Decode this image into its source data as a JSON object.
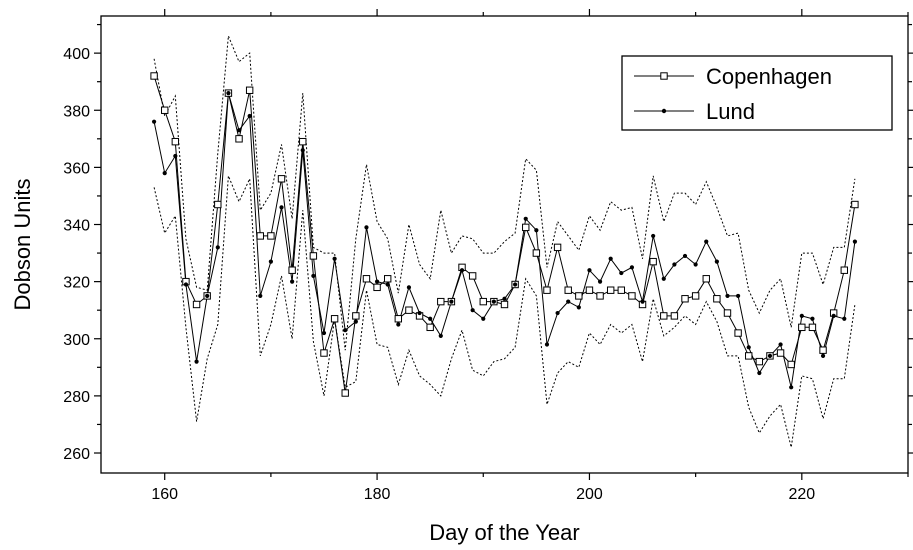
{
  "chart_data": {
    "type": "line",
    "title": "",
    "xlabel": "Day of the Year",
    "ylabel": "Dobson Units",
    "xlim": [
      154,
      230
    ],
    "ylim": [
      253,
      413
    ],
    "xticks": [
      160,
      180,
      200,
      220
    ],
    "yticks": [
      260,
      280,
      300,
      320,
      340,
      360,
      380,
      400
    ],
    "grid": false,
    "legend_position": "top-right",
    "x": [
      159,
      160,
      161,
      162,
      163,
      164,
      165,
      166,
      167,
      168,
      169,
      170,
      171,
      172,
      173,
      174,
      175,
      176,
      177,
      178,
      179,
      180,
      181,
      182,
      183,
      184,
      185,
      186,
      187,
      188,
      189,
      190,
      191,
      192,
      193,
      194,
      195,
      196,
      197,
      198,
      199,
      200,
      201,
      202,
      203,
      204,
      205,
      206,
      207,
      208,
      209,
      210,
      211,
      212,
      213,
      214,
      215,
      216,
      217,
      218,
      219,
      220,
      221,
      222,
      223,
      224,
      225
    ],
    "series": [
      {
        "name": "Copenhagen",
        "marker": "open-square",
        "values": [
          392,
          380,
          369,
          320,
          312,
          315,
          347,
          386,
          370,
          387,
          336,
          336,
          356,
          324,
          369,
          329,
          295,
          307,
          281,
          308,
          321,
          318,
          321,
          307,
          310,
          308,
          304,
          313,
          313,
          325,
          322,
          313,
          313,
          312,
          319,
          339,
          330,
          317,
          332,
          317,
          315,
          317,
          315,
          317,
          317,
          315,
          312,
          327,
          308,
          308,
          314,
          315,
          321,
          314,
          309,
          302,
          294,
          292,
          294,
          295,
          291,
          304,
          304,
          296,
          309,
          324,
          347
        ]
      },
      {
        "name": "Lund",
        "marker": "filled-dot",
        "values": [
          376,
          358,
          364,
          319,
          292,
          315,
          332,
          386,
          373,
          378,
          315,
          327,
          346,
          320,
          366,
          322,
          302,
          328,
          303,
          306,
          339,
          320,
          319,
          305,
          318,
          309,
          307,
          301,
          313,
          324,
          310,
          307,
          313,
          314,
          319,
          342,
          338,
          298,
          309,
          313,
          311,
          324,
          320,
          328,
          323,
          325,
          313,
          336,
          321,
          326,
          329,
          326,
          334,
          327,
          315,
          315,
          297,
          288,
          294,
          298,
          283,
          308,
          307,
          294,
          308,
          307,
          334
        ]
      },
      {
        "name": "",
        "style": "dotted",
        "values": [
          398,
          378,
          385,
          335,
          318,
          317,
          365,
          406,
          397,
          400,
          345,
          351,
          368,
          342,
          386,
          332,
          330,
          330,
          296,
          335,
          361,
          341,
          335,
          316,
          340,
          326,
          321,
          345,
          330,
          336,
          335,
          330,
          330,
          334,
          337,
          363,
          359,
          325,
          341,
          336,
          331,
          343,
          338,
          348,
          345,
          346,
          328,
          357,
          341,
          351,
          351,
          347,
          355,
          346,
          336,
          337,
          317,
          309,
          317,
          321,
          304,
          330,
          330,
          319,
          332,
          332,
          356
        ]
      },
      {
        "name": "",
        "style": "dotted",
        "values": [
          353,
          337,
          343,
          304,
          271,
          293,
          305,
          357,
          348,
          356,
          294,
          305,
          322,
          300,
          345,
          299,
          280,
          307,
          283,
          285,
          317,
          298,
          297,
          284,
          296,
          287,
          284,
          280,
          293,
          303,
          289,
          287,
          292,
          293,
          297,
          321,
          315,
          277,
          288,
          292,
          290,
          302,
          298,
          305,
          302,
          305,
          292,
          314,
          301,
          304,
          308,
          305,
          313,
          306,
          294,
          294,
          276,
          267,
          273,
          277,
          262,
          287,
          286,
          272,
          286,
          286,
          312
        ]
      }
    ]
  }
}
